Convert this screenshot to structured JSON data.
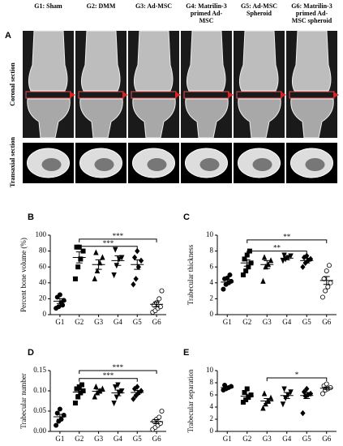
{
  "panel_a": {
    "label": "A",
    "columns": [
      [
        "G1: Sham"
      ],
      [
        "G2: DMM"
      ],
      [
        "G3: Ad-MSC"
      ],
      [
        "G4: Matrilin-3",
        "primed Ad-",
        "MSC"
      ],
      [
        "G5: Ad-MSC",
        "Spheroid"
      ],
      [
        "G6: Matrilin-3",
        "primed Ad-",
        "MSC spheroid"
      ]
    ],
    "rows": [
      "Coronal section",
      "Transaxial section"
    ]
  },
  "chart_data": [
    {
      "type": "scatter",
      "label": "B",
      "y_label": "Percent bone volume (%)",
      "categories": [
        "G1",
        "G2",
        "G3",
        "G4",
        "G5",
        "G6"
      ],
      "markers": [
        "circle",
        "square",
        "triangle",
        "triangle-down",
        "diamond",
        "open-circle"
      ],
      "values": [
        [
          8,
          10,
          15,
          18,
          22,
          25,
          12
        ],
        [
          45,
          60,
          70,
          80,
          85,
          85
        ],
        [
          45,
          55,
          65,
          72,
          78
        ],
        [
          50,
          62,
          70,
          72,
          82
        ],
        [
          38,
          45,
          60,
          68,
          72,
          80
        ],
        [
          3,
          5,
          8,
          10,
          12,
          15,
          20,
          30
        ]
      ],
      "mean": [
        17,
        72,
        63,
        68,
        63,
        13
      ],
      "sem": [
        3,
        7,
        6,
        6,
        6,
        3
      ],
      "ylim": [
        0,
        100
      ],
      "yticks": [
        0,
        20,
        40,
        60,
        80,
        100
      ],
      "annotations": [
        "***",
        "***"
      ]
    },
    {
      "type": "scatter",
      "label": "C",
      "y_label": "Trabecular thickness",
      "categories": [
        "G1",
        "G2",
        "G3",
        "G4",
        "G5",
        "G6"
      ],
      "markers": [
        "circle",
        "square",
        "triangle",
        "triangle-down",
        "diamond",
        "open-circle"
      ],
      "values": [
        [
          3.2,
          3.8,
          4,
          4.2,
          4.5,
          4.6,
          5
        ],
        [
          5,
          5.5,
          6,
          6.5,
          7,
          7.5,
          8
        ],
        [
          4.2,
          6,
          6.3,
          6.8,
          7.2
        ],
        [
          6.8,
          7,
          7.2,
          7.4,
          7.5
        ],
        [
          6,
          6.5,
          6.8,
          7,
          7.2,
          7.4
        ],
        [
          2.2,
          3,
          3.5,
          4,
          4.5,
          5.5,
          6.2
        ]
      ],
      "mean": [
        4.1,
        6.5,
        6.3,
        7.1,
        6.8,
        4.3
      ],
      "sem": [
        0.3,
        0.4,
        0.5,
        0.2,
        0.3,
        0.5
      ],
      "ylim": [
        0,
        10
      ],
      "yticks": [
        0,
        2,
        4,
        6,
        8,
        10
      ],
      "annotations": [
        "**",
        "**"
      ]
    },
    {
      "type": "scatter",
      "label": "D",
      "y_label": "Trabecular number",
      "categories": [
        "G1",
        "G2",
        "G3",
        "G4",
        "G5",
        "G6"
      ],
      "markers": [
        "circle",
        "square",
        "triangle",
        "triangle-down",
        "diamond",
        "open-circle"
      ],
      "values": [
        [
          0.015,
          0.025,
          0.03,
          0.04,
          0.045,
          0.055
        ],
        [
          0.07,
          0.085,
          0.095,
          0.1,
          0.105,
          0.11,
          0.115
        ],
        [
          0.085,
          0.095,
          0.1,
          0.105,
          0.11
        ],
        [
          0.07,
          0.085,
          0.095,
          0.1,
          0.11,
          0.115
        ],
        [
          0.08,
          0.088,
          0.095,
          0.1,
          0.105,
          0.11
        ],
        [
          0.005,
          0.01,
          0.015,
          0.02,
          0.025,
          0.03,
          0.035,
          0.05
        ]
      ],
      "mean": [
        0.036,
        0.097,
        0.099,
        0.095,
        0.096,
        0.024
      ],
      "sem": [
        0.006,
        0.006,
        0.005,
        0.007,
        0.005,
        0.005
      ],
      "ylim": [
        0,
        0.15
      ],
      "yticks": [
        {
          "value": 0,
          "label": "0.00"
        },
        {
          "value": 0.05,
          "label": "0.05"
        },
        {
          "value": 0.1,
          "label": "0.10"
        },
        0.15
      ],
      "annotations": [
        "***",
        "***"
      ]
    },
    {
      "type": "scatter",
      "label": "E",
      "y_label": "Trabecular separation",
      "categories": [
        "G1",
        "G2",
        "G3",
        "G4",
        "G5",
        "G6"
      ],
      "markers": [
        "circle",
        "square",
        "triangle",
        "triangle-down",
        "diamond",
        "open-circle"
      ],
      "values": [
        [
          6.8,
          7,
          7.2,
          7.4,
          7.6
        ],
        [
          4.8,
          5.2,
          5.6,
          6,
          6.4,
          7
        ],
        [
          3.8,
          4.5,
          5,
          5.5,
          6.2
        ],
        [
          4.5,
          5.5,
          6,
          6.5,
          7
        ],
        [
          3,
          5.8,
          6,
          6.2,
          6.5,
          7
        ],
        [
          6.2,
          6.8,
          7,
          7.2,
          7.5,
          7.8
        ]
      ],
      "mean": [
        7.2,
        5.8,
        5,
        5.9,
        5.9,
        7.1
      ],
      "sem": [
        0.2,
        0.3,
        0.4,
        0.5,
        0.5,
        0.2
      ],
      "ylim": [
        0,
        10
      ],
      "yticks": [
        0,
        2,
        4,
        6,
        8,
        10
      ],
      "annotations": [
        "*"
      ]
    }
  ]
}
